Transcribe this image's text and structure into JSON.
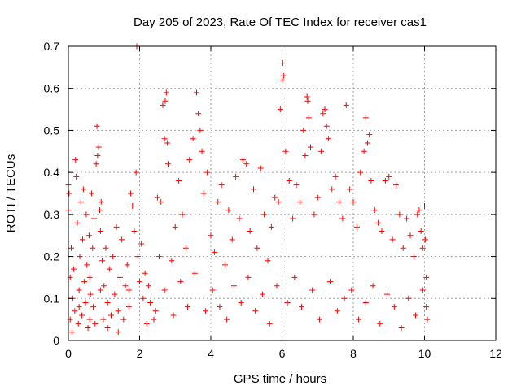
{
  "chart_data": {
    "type": "scatter",
    "title": "Day 205 of 2023, Rate Of TEC Index for receiver cas1",
    "xlabel": "GPS time / hours",
    "ylabel": "ROTI / TECUs",
    "xlim": [
      0,
      12
    ],
    "ylim": [
      0,
      0.7
    ],
    "x_ticks": [
      0,
      2,
      4,
      6,
      8,
      10,
      12
    ],
    "y_ticks": [
      0,
      0.1,
      0.2,
      0.3,
      0.4,
      0.5,
      0.6,
      0.7
    ],
    "x_tick_labels": [
      "0",
      "2",
      "4",
      "6",
      "8",
      "10",
      "12"
    ],
    "y_tick_labels": [
      "0",
      "0.1",
      "0.2",
      "0.3",
      "0.4",
      "0.5",
      "0.6",
      "0.7"
    ],
    "grid": true,
    "marker": "+",
    "color": "#ff0000",
    "series": [
      {
        "points": [
          [
            0.0,
            0.37
          ],
          [
            0.0,
            0.31
          ],
          [
            0.02,
            0.35
          ],
          [
            0.05,
            0.05
          ],
          [
            0.05,
            0.15
          ],
          [
            0.08,
            0.22
          ],
          [
            0.1,
            0.02
          ],
          [
            0.12,
            0.1
          ],
          [
            0.15,
            0.17
          ],
          [
            0.18,
            0.07
          ],
          [
            0.2,
            0.43
          ],
          [
            0.22,
            0.39
          ],
          [
            0.25,
            0.28
          ],
          [
            0.28,
            0.04
          ],
          [
            0.3,
            0.12
          ],
          [
            0.32,
            0.2
          ],
          [
            0.35,
            0.33
          ],
          [
            0.38,
            0.06
          ],
          [
            0.4,
            0.24
          ],
          [
            0.42,
            0.36
          ],
          [
            0.45,
            0.14
          ],
          [
            0.48,
            0.09
          ],
          [
            0.5,
            0.3
          ],
          [
            0.52,
            0.18
          ],
          [
            0.55,
            0.03
          ],
          [
            0.58,
            0.25
          ],
          [
            0.6,
            0.15
          ],
          [
            0.62,
            0.11
          ],
          [
            0.65,
            0.35
          ],
          [
            0.68,
            0.22
          ],
          [
            0.7,
            0.08
          ],
          [
            0.72,
            0.29
          ],
          [
            0.75,
            0.04
          ],
          [
            0.78,
            0.42
          ],
          [
            0.8,
            0.51
          ],
          [
            0.82,
            0.44
          ],
          [
            0.85,
            0.46
          ],
          [
            0.88,
            0.31
          ],
          [
            0.9,
            0.26
          ],
          [
            0.92,
            0.33
          ],
          [
            0.95,
            0.19
          ],
          [
            0.98,
            0.05
          ],
          [
            1.0,
            0.13
          ],
          [
            1.05,
            0.22
          ],
          [
            1.1,
            0.09
          ],
          [
            1.15,
            0.17
          ],
          [
            1.2,
            0.06
          ],
          [
            1.25,
            0.2
          ],
          [
            1.3,
            0.11
          ],
          [
            1.35,
            0.27
          ],
          [
            1.4,
            0.07
          ],
          [
            1.45,
            0.15
          ],
          [
            1.5,
            0.24
          ],
          [
            1.55,
            0.05
          ],
          [
            1.6,
            0.13
          ],
          [
            1.65,
            0.18
          ],
          [
            1.7,
            0.08
          ],
          [
            1.75,
            0.35
          ],
          [
            1.8,
            0.32
          ],
          [
            1.85,
            0.26
          ],
          [
            1.9,
            0.4
          ],
          [
            1.92,
            0.7
          ],
          [
            1.95,
            0.2
          ],
          [
            2.0,
            0.14
          ],
          [
            2.05,
            0.23
          ],
          [
            2.1,
            0.1
          ],
          [
            2.15,
            0.16
          ],
          [
            2.2,
            0.04
          ],
          [
            2.3,
            0.09
          ],
          [
            2.4,
            0.05
          ],
          [
            2.5,
            0.34
          ],
          [
            2.55,
            0.2
          ],
          [
            2.6,
            0.33
          ],
          [
            2.65,
            0.56
          ],
          [
            2.7,
            0.48
          ],
          [
            2.72,
            0.57
          ],
          [
            2.75,
            0.59
          ],
          [
            2.78,
            0.47
          ],
          [
            2.8,
            0.42
          ],
          [
            2.9,
            0.19
          ],
          [
            3.0,
            0.27
          ],
          [
            3.1,
            0.38
          ],
          [
            3.2,
            0.3
          ],
          [
            3.3,
            0.22
          ],
          [
            3.4,
            0.43
          ],
          [
            3.5,
            0.48
          ],
          [
            3.6,
            0.59
          ],
          [
            3.65,
            0.54
          ],
          [
            3.7,
            0.5
          ],
          [
            3.75,
            0.45
          ],
          [
            3.8,
            0.35
          ],
          [
            3.9,
            0.4
          ],
          [
            4.0,
            0.25
          ],
          [
            4.1,
            0.21
          ],
          [
            4.2,
            0.33
          ],
          [
            4.3,
            0.37
          ],
          [
            4.4,
            0.18
          ],
          [
            4.5,
            0.31
          ],
          [
            4.6,
            0.24
          ],
          [
            4.7,
            0.39
          ],
          [
            4.8,
            0.29
          ],
          [
            4.9,
            0.43
          ],
          [
            5.0,
            0.42
          ],
          [
            5.1,
            0.26
          ],
          [
            5.2,
            0.36
          ],
          [
            5.3,
            0.22
          ],
          [
            5.4,
            0.41
          ],
          [
            5.5,
            0.3
          ],
          [
            5.6,
            0.19
          ],
          [
            5.7,
            0.27
          ],
          [
            5.8,
            0.34
          ],
          [
            5.9,
            0.33
          ],
          [
            5.95,
            0.55
          ],
          [
            6.0,
            0.62
          ],
          [
            6.02,
            0.66
          ],
          [
            6.05,
            0.63
          ],
          [
            6.1,
            0.45
          ],
          [
            6.2,
            0.38
          ],
          [
            6.3,
            0.29
          ],
          [
            6.4,
            0.37
          ],
          [
            6.5,
            0.33
          ],
          [
            6.6,
            0.5
          ],
          [
            6.65,
            0.44
          ],
          [
            6.7,
            0.58
          ],
          [
            6.72,
            0.57
          ],
          [
            6.75,
            0.53
          ],
          [
            6.8,
            0.46
          ],
          [
            6.9,
            0.3
          ],
          [
            7.0,
            0.34
          ],
          [
            7.1,
            0.45
          ],
          [
            7.15,
            0.54
          ],
          [
            7.2,
            0.55
          ],
          [
            7.25,
            0.51
          ],
          [
            7.3,
            0.48
          ],
          [
            7.4,
            0.36
          ],
          [
            7.5,
            0.39
          ],
          [
            7.6,
            0.33
          ],
          [
            7.7,
            0.29
          ],
          [
            7.8,
            0.56
          ],
          [
            7.9,
            0.36
          ],
          [
            8.0,
            0.33
          ],
          [
            8.1,
            0.27
          ],
          [
            8.2,
            0.4
          ],
          [
            8.3,
            0.45
          ],
          [
            8.35,
            0.53
          ],
          [
            8.4,
            0.47
          ],
          [
            8.45,
            0.49
          ],
          [
            8.5,
            0.38
          ],
          [
            8.6,
            0.31
          ],
          [
            8.7,
            0.28
          ],
          [
            8.8,
            0.26
          ],
          [
            8.9,
            0.38
          ],
          [
            9.0,
            0.39
          ],
          [
            9.1,
            0.24
          ],
          [
            9.2,
            0.37
          ],
          [
            9.3,
            0.3
          ],
          [
            9.4,
            0.22
          ],
          [
            9.5,
            0.29
          ],
          [
            9.6,
            0.25
          ],
          [
            9.7,
            0.2
          ],
          [
            9.8,
            0.3
          ],
          [
            9.85,
            0.31
          ],
          [
            9.9,
            0.26
          ],
          [
            9.95,
            0.22
          ],
          [
            10.0,
            0.32
          ],
          [
            10.02,
            0.24
          ],
          [
            10.05,
            0.15
          ],
          [
            10.08,
            0.05
          ],
          [
            0.3,
            0.08
          ],
          [
            0.6,
            0.05
          ],
          [
            0.9,
            0.12
          ],
          [
            1.1,
            0.03
          ],
          [
            1.4,
            0.02
          ],
          [
            1.7,
            0.12
          ],
          [
            2.25,
            0.13
          ],
          [
            2.45,
            0.07
          ],
          [
            2.7,
            0.12
          ],
          [
            2.95,
            0.06
          ],
          [
            3.15,
            0.14
          ],
          [
            3.35,
            0.08
          ],
          [
            3.55,
            0.16
          ],
          [
            3.85,
            0.07
          ],
          [
            4.05,
            0.12
          ],
          [
            4.25,
            0.08
          ],
          [
            4.45,
            0.05
          ],
          [
            4.65,
            0.13
          ],
          [
            4.85,
            0.09
          ],
          [
            5.05,
            0.15
          ],
          [
            5.25,
            0.07
          ],
          [
            5.45,
            0.11
          ],
          [
            5.65,
            0.04
          ],
          [
            5.85,
            0.13
          ],
          [
            6.15,
            0.09
          ],
          [
            6.35,
            0.15
          ],
          [
            6.55,
            0.08
          ],
          [
            6.85,
            0.12
          ],
          [
            7.05,
            0.05
          ],
          [
            7.35,
            0.14
          ],
          [
            7.55,
            0.07
          ],
          [
            7.75,
            0.1
          ],
          [
            7.95,
            0.12
          ],
          [
            8.15,
            0.05
          ],
          [
            8.35,
            0.09
          ],
          [
            8.55,
            0.13
          ],
          [
            8.75,
            0.04
          ],
          [
            8.95,
            0.11
          ],
          [
            9.15,
            0.08
          ],
          [
            9.35,
            0.03
          ],
          [
            9.55,
            0.1
          ],
          [
            9.75,
            0.06
          ],
          [
            9.95,
            0.12
          ],
          [
            10.05,
            0.08
          ]
        ]
      }
    ]
  }
}
